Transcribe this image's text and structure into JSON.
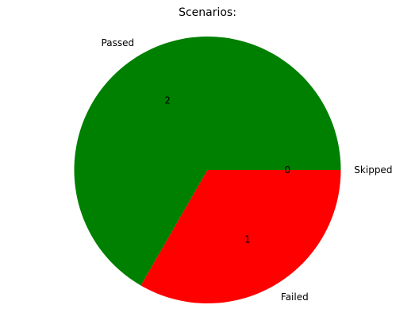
{
  "chart_data": {
    "type": "pie",
    "title": "Scenarios:",
    "categories": [
      "Passed",
      "Failed",
      "Skipped"
    ],
    "values": [
      2,
      1,
      0
    ],
    "value_labels": [
      "2",
      "1",
      "0"
    ],
    "colors": [
      "#008000",
      "#ff0000",
      "#1f77b4"
    ]
  }
}
